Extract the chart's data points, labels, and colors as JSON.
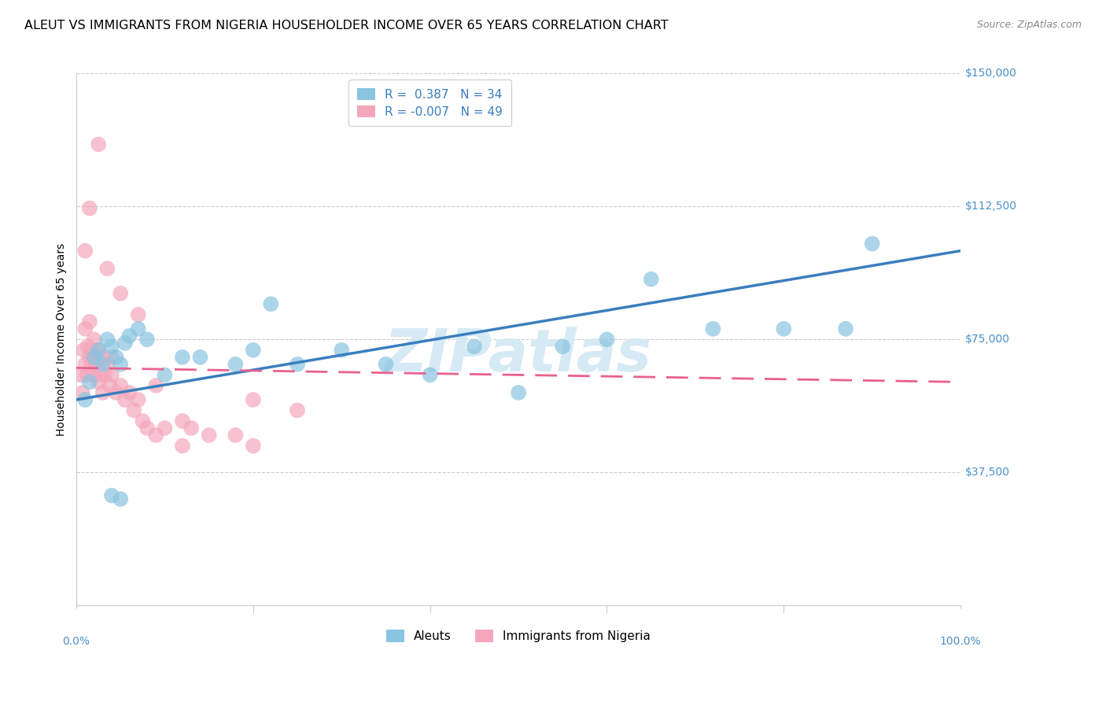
{
  "title": "ALEUT VS IMMIGRANTS FROM NIGERIA HOUSEHOLDER INCOME OVER 65 YEARS CORRELATION CHART",
  "source": "Source: ZipAtlas.com",
  "ylabel": "Householder Income Over 65 years",
  "xlim": [
    0.0,
    100.0
  ],
  "ylim": [
    0,
    150000
  ],
  "yticks": [
    0,
    37500,
    75000,
    112500,
    150000
  ],
  "ytick_labels_right": [
    "",
    "$37,500",
    "$75,000",
    "$112,500",
    "$150,000"
  ],
  "legend_blue_R": "0.387",
  "legend_blue_N": "34",
  "legend_pink_R": "-0.007",
  "legend_pink_N": "49",
  "blue_color": "#89c4e1",
  "pink_color": "#f4a7bb",
  "blue_line_color": "#3a7ebf",
  "pink_line_color": "#e86090",
  "tick_label_color": "#4a90c8",
  "background_color": "#ffffff",
  "grid_color": "#cccccc",
  "label_blue": "Aleuts",
  "label_pink": "Immigrants from Nigeria",
  "blue_x": [
    1.0,
    1.5,
    2.0,
    2.5,
    3.0,
    3.5,
    4.0,
    4.5,
    5.0,
    5.5,
    6.0,
    7.0,
    8.0,
    10.0,
    12.0,
    14.0,
    18.0,
    20.0,
    22.0,
    25.0,
    30.0,
    35.0,
    40.0,
    45.0,
    50.0,
    55.0,
    60.0,
    65.0,
    72.0,
    80.0,
    87.0,
    90.0,
    4.0,
    5.0
  ],
  "blue_y": [
    58000,
    63000,
    70000,
    72000,
    68000,
    75000,
    73000,
    70000,
    68000,
    74000,
    76000,
    78000,
    75000,
    65000,
    70000,
    70000,
    68000,
    72000,
    85000,
    68000,
    72000,
    68000,
    65000,
    73000,
    60000,
    73000,
    75000,
    92000,
    78000,
    78000,
    78000,
    102000,
    31000,
    30000
  ],
  "pink_x": [
    0.5,
    0.7,
    0.8,
    1.0,
    1.0,
    1.2,
    1.3,
    1.5,
    1.5,
    1.7,
    1.8,
    2.0,
    2.0,
    2.2,
    2.5,
    2.5,
    2.8,
    3.0,
    3.0,
    3.2,
    3.5,
    3.8,
    4.0,
    4.0,
    4.5,
    5.0,
    5.5,
    6.0,
    6.5,
    7.0,
    7.5,
    8.0,
    9.0,
    10.0,
    12.0,
    13.0,
    15.0,
    18.0,
    20.0,
    25.0,
    1.0,
    1.5,
    2.5,
    3.5,
    5.0,
    7.0,
    9.0,
    12.0,
    20.0
  ],
  "pink_y": [
    65000,
    60000,
    72000,
    68000,
    78000,
    65000,
    73000,
    70000,
    80000,
    68000,
    72000,
    65000,
    75000,
    68000,
    63000,
    72000,
    65000,
    60000,
    70000,
    65000,
    68000,
    62000,
    70000,
    65000,
    60000,
    62000,
    58000,
    60000,
    55000,
    58000,
    52000,
    50000,
    48000,
    50000,
    45000,
    50000,
    48000,
    48000,
    58000,
    55000,
    100000,
    112000,
    130000,
    95000,
    88000,
    82000,
    62000,
    52000,
    45000
  ],
  "watermark": "ZIPatlas",
  "watermark_color": "#d5eaf5",
  "title_fontsize": 11.5,
  "axis_label_fontsize": 10,
  "tick_fontsize": 10,
  "legend_fontsize": 11,
  "source_fontsize": 9
}
